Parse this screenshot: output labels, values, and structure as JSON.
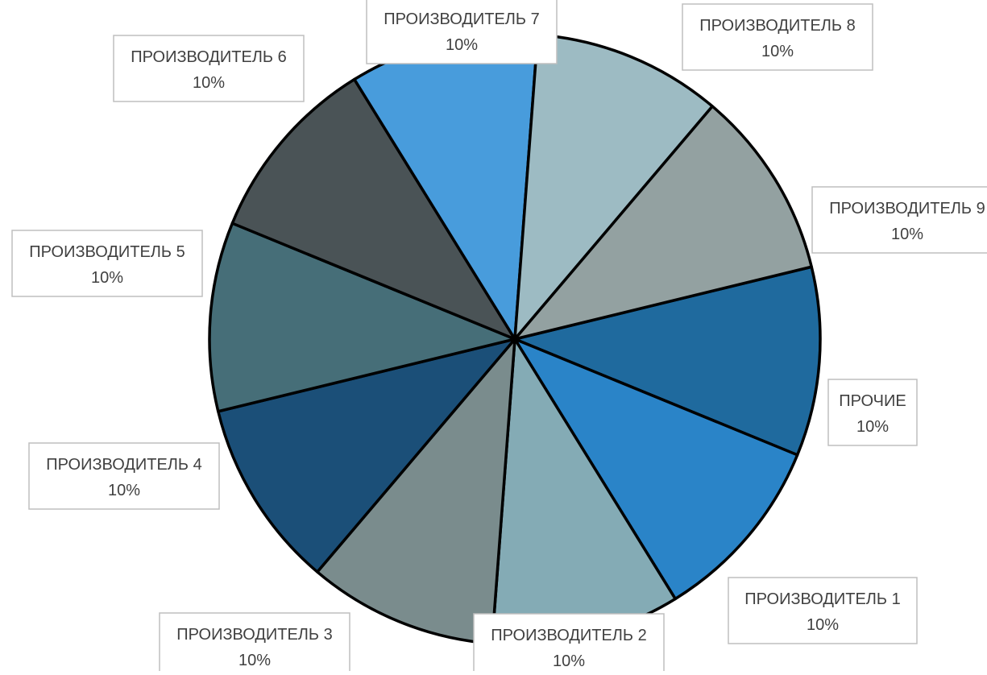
{
  "chart_data": {
    "type": "pie",
    "title": "",
    "slices": [
      {
        "label": "ПРОЧИЕ",
        "value": 10,
        "value_label": "10%",
        "color": "#1f6a9e"
      },
      {
        "label": "ПРОИЗВОДИТЕЛЬ 1",
        "value": 10,
        "value_label": "10%",
        "color": "#2a84c8"
      },
      {
        "label": "ПРОИЗВОДИТЕЛЬ 2",
        "value": 10,
        "value_label": "10%",
        "color": "#84abb5"
      },
      {
        "label": "ПРОИЗВОДИТЕЛЬ 3",
        "value": 10,
        "value_label": "10%",
        "color": "#7a8c8d"
      },
      {
        "label": "ПРОИЗВОДИТЕЛЬ 4",
        "value": 10,
        "value_label": "10%",
        "color": "#1b4f78"
      },
      {
        "label": "ПРОИЗВОДИТЕЛЬ 5",
        "value": 10,
        "value_label": "10%",
        "color": "#466e78"
      },
      {
        "label": "ПРОИЗВОДИТЕЛЬ 6",
        "value": 10,
        "value_label": "10%",
        "color": "#4a5356"
      },
      {
        "label": "ПРОИЗВОДИТЕЛЬ 7",
        "value": 10,
        "value_label": "10%",
        "color": "#489cdc"
      },
      {
        "label": "ПРОИЗВОДИТЕЛЬ 8",
        "value": 10,
        "value_label": "10%",
        "color": "#9dbbc3"
      },
      {
        "label": "ПРОИЗВОДИТЕЛЬ 9",
        "value": 10,
        "value_label": "10%",
        "color": "#93a1a1"
      }
    ]
  }
}
